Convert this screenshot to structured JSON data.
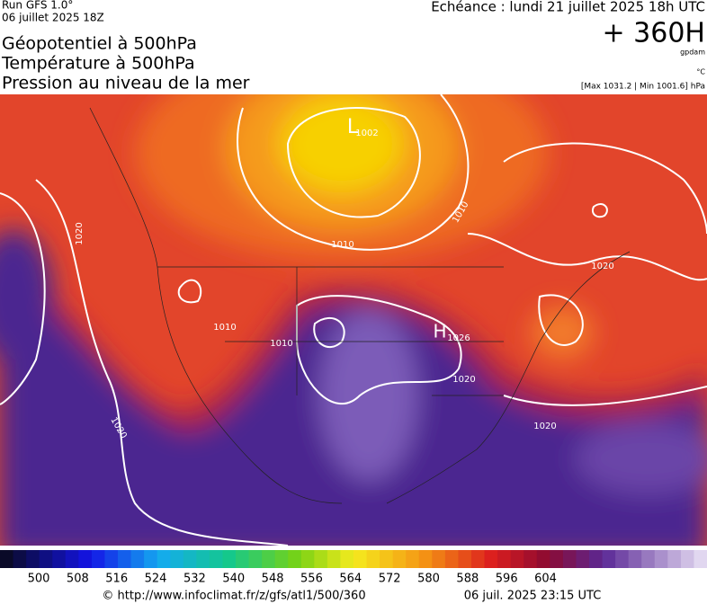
{
  "header": {
    "run": "Run GFS 1.0°",
    "date": "06 juillet 2025 18Z",
    "titles": [
      "Géopotentiel à 500hPa",
      "Température à 500hPa",
      "Pression au niveau de la mer"
    ],
    "echeance": "Echéance : lundi 21 juillet 2025 18h UTC",
    "lead": "+ 360H",
    "unit_gpdam": "gpdam",
    "unit_c": "°C",
    "extremes": "[Max 1031.2 | Min 1001.6] hPa"
  },
  "map": {
    "labels": [
      "L",
      "1002",
      "H",
      "1026",
      "1010",
      "1010",
      "1010",
      "1010",
      "1020",
      "1020",
      "1020",
      "1020",
      "1020"
    ]
  },
  "legend": {
    "ticks": [
      500,
      508,
      516,
      524,
      532,
      540,
      548,
      556,
      564,
      572,
      580,
      588,
      596,
      604
    ]
  },
  "footer": {
    "source": "© http://www.infoclimat.fr/z/gfs/atl1/500/360",
    "issued": "06 juil. 2025 23:15 UTC"
  }
}
